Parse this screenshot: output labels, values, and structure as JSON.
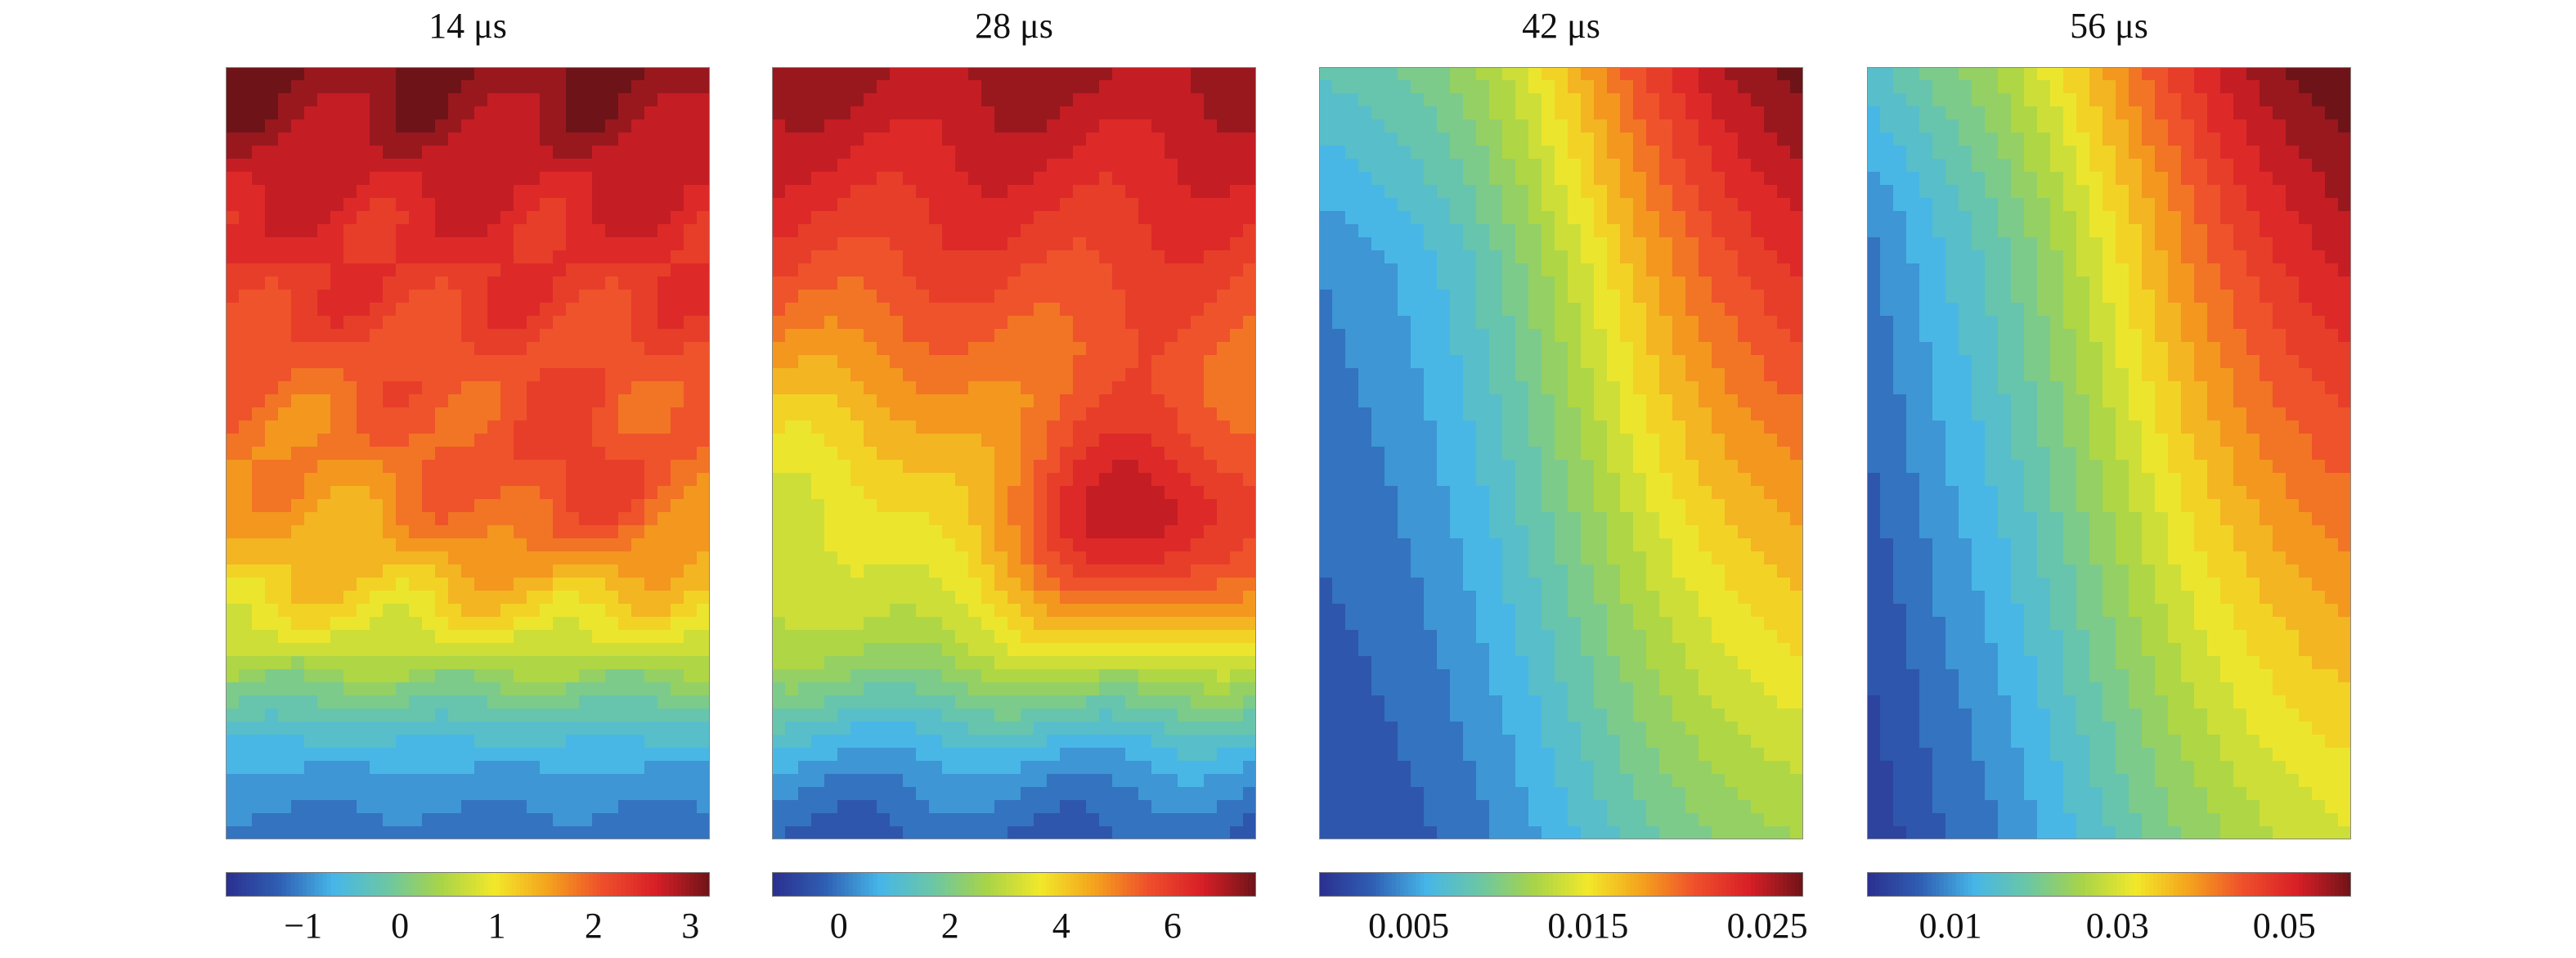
{
  "chart_data": [
    {
      "type": "heatmap",
      "title": "14 μs",
      "colorbar": {
        "ticks": [
          -1,
          0,
          1,
          2,
          3
        ],
        "tick_labels": [
          "−1",
          "0",
          "1",
          "2",
          "3"
        ],
        "range": [
          -1.8,
          3.2
        ]
      },
      "colormap": [
        "#2b2f8f",
        "#2f5fb3",
        "#47b6e8",
        "#6cc7a4",
        "#a8d448",
        "#f2e82a",
        "#f4a21d",
        "#ef4f2c",
        "#d81f27",
        "#6e1418"
      ],
      "pattern": "top high (~3), mid-right warm patch (~1.6), bottom low (~-1.5), contoured"
    },
    {
      "type": "heatmap",
      "title": "28 μs",
      "colorbar": {
        "ticks": [
          0,
          2,
          4,
          6
        ],
        "tick_labels": [
          "0",
          "2",
          "4",
          "6"
        ],
        "range": [
          -1.2,
          7.5
        ]
      },
      "colormap": [
        "#2b2f8f",
        "#2f5fb3",
        "#47b6e8",
        "#6cc7a4",
        "#a8d448",
        "#f2e82a",
        "#f4a21d",
        "#ef4f2c",
        "#d81f27",
        "#6e1418"
      ],
      "pattern": "top high (~7), red hotspot at right-middle (~6.5), blue band at bottom (~-1)"
    },
    {
      "type": "heatmap",
      "title": "42 μs",
      "colorbar": {
        "ticks": [
          0.005,
          0.015,
          0.025
        ],
        "tick_labels": [
          "0.005",
          "0.015",
          "0.025"
        ],
        "range": [
          0,
          0.027
        ]
      },
      "colormap": [
        "#2b2f8f",
        "#2f5fb3",
        "#47b6e8",
        "#6cc7a4",
        "#a8d448",
        "#f2e82a",
        "#f4a21d",
        "#ef4f2c",
        "#d81f27",
        "#6e1418"
      ],
      "pattern": "increases toward right edge (max ~0.027 upper right), low in lower-left"
    },
    {
      "type": "heatmap",
      "title": "56 μs",
      "colorbar": {
        "ticks": [
          0.01,
          0.03,
          0.05
        ],
        "tick_labels": [
          "0.01",
          "0.03",
          "0.05"
        ],
        "range": [
          0,
          0.058
        ]
      },
      "colormap": [
        "#2b2f8f",
        "#2f5fb3",
        "#47b6e8",
        "#6cc7a4",
        "#a8d448",
        "#f2e82a",
        "#f4a21d",
        "#ef4f2c",
        "#d81f27",
        "#6e1418"
      ],
      "pattern": "increases toward right edge (max ~0.058 upper right), low along left edge"
    }
  ]
}
